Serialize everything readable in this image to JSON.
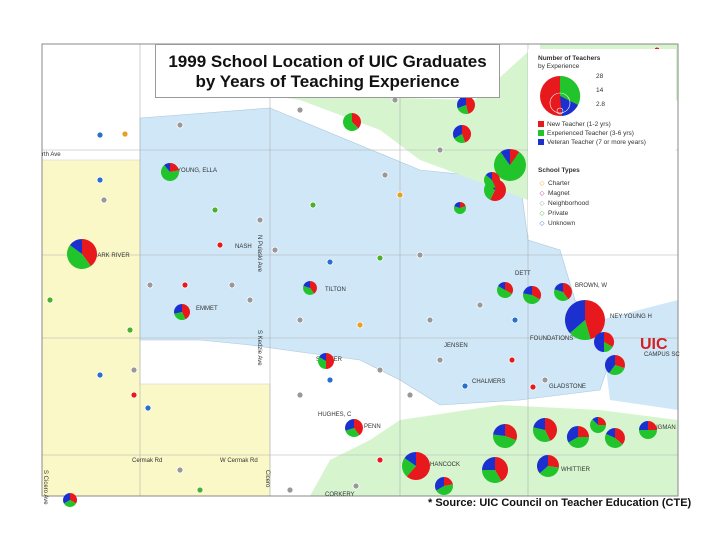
{
  "title_line1": "1999 School Location of UIC Graduates",
  "title_line2": "by Years of Teaching Experience",
  "legend": {
    "size_title": "Number of Teachers",
    "size_subtitle": "by Experience",
    "size_values": [
      "28",
      "14",
      "2.8"
    ],
    "experience": [
      {
        "label": "New Teacher (1-2 yrs)",
        "color": "#e8191c"
      },
      {
        "label": "Experienced Teacher (3-6 yrs)",
        "color": "#21c42a"
      },
      {
        "label": "Veteran Teacher (7 or more years)",
        "color": "#1c2fcf"
      }
    ],
    "types_title": "School Types",
    "types": [
      {
        "label": "Charter",
        "color": "#e8a020"
      },
      {
        "label": "Magnet",
        "color": "#c02090"
      },
      {
        "label": "Neighborhood",
        "color": "#999999"
      },
      {
        "label": "Private",
        "color": "#4caf30"
      },
      {
        "label": "Unknown",
        "color": "#2a6fd0"
      }
    ]
  },
  "labels": [
    {
      "text": "YOUNG, ELLA"
    },
    {
      "text": "DARK RIVER"
    },
    {
      "text": "NASH"
    },
    {
      "text": "TILTON"
    },
    {
      "text": "EMMET"
    },
    {
      "text": "DETT"
    },
    {
      "text": "BROWN, W"
    },
    {
      "text": "NEY YOUNG H"
    },
    {
      "text": "FOUNDATIONS"
    },
    {
      "text": "JENSEN"
    },
    {
      "text": "SUMNER"
    },
    {
      "text": "CHALMERS"
    },
    {
      "text": "GLADSTONE"
    },
    {
      "text": "HUGHES, C"
    },
    {
      "text": "PENN"
    },
    {
      "text": "HANCOCK"
    },
    {
      "text": "WHITTIER"
    },
    {
      "text": "CORKERY"
    },
    {
      "text": "JUNGMAN"
    },
    {
      "text": "Cermak Rd"
    },
    {
      "text": "W Cermak Rd"
    },
    {
      "text": "rth Ave"
    },
    {
      "text": "N Pulaski Ave"
    },
    {
      "text": "S Kedzie Ave"
    },
    {
      "text": "Cicero"
    },
    {
      "text": "S Cicero Ave"
    }
  ],
  "uic_label": "UIC",
  "uic_sub": "CAMPUS SC",
  "source": "* Source: UIC Council on Teacher Education (CTE)",
  "schools": [
    {
      "name": "pie",
      "values": [
        8,
        9,
        3
      ]
    },
    {
      "name": "pie",
      "values": [
        10,
        4,
        8
      ]
    },
    {
      "name": "pie",
      "values": [
        5,
        3,
        2
      ]
    },
    {
      "name": "pie",
      "values": [
        4,
        2,
        3
      ]
    },
    {
      "name": "pie",
      "values": [
        3,
        5,
        0
      ]
    },
    {
      "name": "pie",
      "values": [
        6,
        3,
        4
      ]
    },
    {
      "name": "pie",
      "values": [
        1,
        8,
        1
      ]
    },
    {
      "name": "pie",
      "values": [
        4,
        2,
        1
      ]
    },
    {
      "name": "pie",
      "values": [
        3,
        3,
        1
      ]
    },
    {
      "name": "pie",
      "values": [
        2,
        6,
        1
      ]
    },
    {
      "name": "pie",
      "values": [
        2,
        2,
        1
      ]
    },
    {
      "name": "pie",
      "values": [
        3,
        2,
        2
      ]
    },
    {
      "name": "pie",
      "values": [
        10,
        8,
        12
      ]
    },
    {
      "name": "pie",
      "values": [
        2,
        3,
        1
      ]
    },
    {
      "name": "pie",
      "values": [
        3,
        4,
        2
      ]
    },
    {
      "name": "pie",
      "values": [
        4,
        4,
        2
      ]
    },
    {
      "name": "pie",
      "values": [
        2,
        1,
        3
      ]
    },
    {
      "name": "pie",
      "values": [
        3,
        3,
        4
      ]
    },
    {
      "name": "pie",
      "values": [
        2,
        4,
        2
      ]
    },
    {
      "name": "pie",
      "values": [
        4,
        5,
        2
      ]
    },
    {
      "name": "pie",
      "values": [
        3,
        5,
        4
      ]
    },
    {
      "name": "pie",
      "values": [
        8,
        3,
        2
      ]
    },
    {
      "name": "pie",
      "values": [
        5,
        4,
        3
      ]
    },
    {
      "name": "pie",
      "values": [
        3,
        4,
        4
      ]
    },
    {
      "name": "pie",
      "values": [
        4,
        6,
        3
      ]
    },
    {
      "name": "pie",
      "values": [
        6,
        5,
        3
      ]
    },
    {
      "name": "pie",
      "values": [
        2,
        5,
        1
      ]
    },
    {
      "name": "pie",
      "values": [
        4,
        3,
        3
      ]
    },
    {
      "name": "pie",
      "values": [
        1,
        3,
        1
      ]
    },
    {
      "name": "pie",
      "values": [
        2,
        2,
        2
      ]
    },
    {
      "name": "pie",
      "values": [
        3,
        2,
        1
      ]
    },
    {
      "name": "pie",
      "values": [
        2,
        4,
        3
      ]
    },
    {
      "name": "pie",
      "values": [
        5,
        6,
        2
      ]
    }
  ]
}
